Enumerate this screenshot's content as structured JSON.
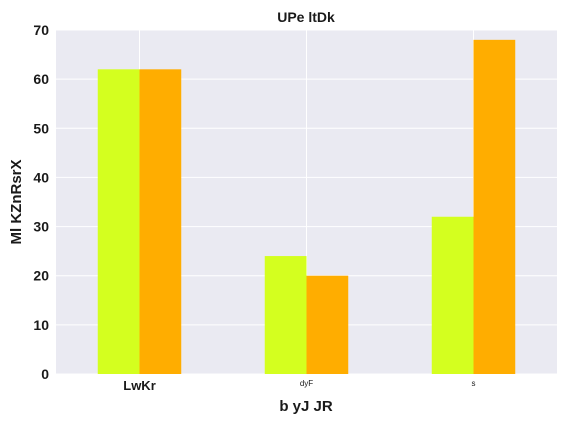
{
  "chart_data": {
    "type": "bar",
    "title": "UPe  ltDk",
    "xlabel": "b  yJ  JR",
    "ylabel": "Ml KZnRsrX",
    "categories": [
      "LwKr",
      "dyF",
      "s"
    ],
    "series": [
      {
        "values": [
          62,
          24,
          32
        ],
        "color": "#d4ff1f"
      },
      {
        "values": [
          62,
          20,
          68
        ],
        "color": "#ffad00"
      }
    ],
    "ylim": [
      0,
      70
    ],
    "yticks": [
      0,
      10,
      20,
      30,
      40,
      50,
      60,
      70
    ],
    "grid": true,
    "background": "#eaeaf2"
  }
}
